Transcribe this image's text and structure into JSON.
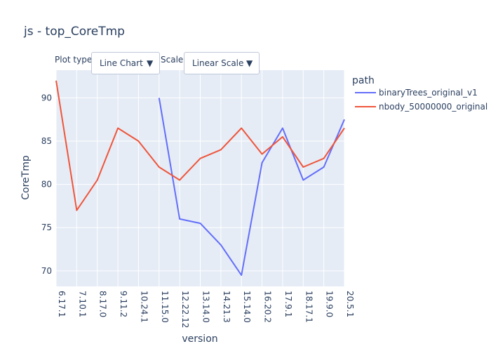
{
  "title": "js - top_CoreTmp",
  "controls": {
    "plot_type_label": "Plot type:",
    "plot_type_value": "Line Chart",
    "scale_label": "Scale:",
    "scale_value": "Linear Scale",
    "arrow_icon": "▼"
  },
  "legend": {
    "title": "path"
  },
  "colors": {
    "background": "#e5ecf6",
    "grid": "#ffffff",
    "series1": "#636efa",
    "series2": "#ef553b"
  },
  "chart_data": {
    "type": "line",
    "title": "js - top_CoreTmp",
    "xlabel": "version",
    "ylabel": "CoreTmp",
    "categories": [
      "6.17.1",
      "7.10.1",
      "8.17.0",
      "9.11.2",
      "10.24.1",
      "11.15.0",
      "12.22.12",
      "13.14.0",
      "14.21.3",
      "15.14.0",
      "16.20.2",
      "17.9.1",
      "18.17.1",
      "19.9.0",
      "20.5.1"
    ],
    "ylim": [
      68.2,
      93.2
    ],
    "yticks": [
      70,
      75,
      80,
      85,
      90
    ],
    "grid": true,
    "legend_position": "top-right",
    "series": [
      {
        "name": "binaryTrees_original_v1",
        "values": [
          null,
          null,
          null,
          null,
          null,
          90,
          76,
          75.5,
          73,
          69.5,
          82.5,
          86.5,
          80.5,
          82,
          87.5
        ]
      },
      {
        "name": "nbody_50000000_original",
        "values": [
          92,
          77,
          80.5,
          86.5,
          85,
          82,
          80.5,
          83,
          84,
          86.5,
          83.5,
          85.5,
          82,
          83,
          86.5
        ]
      }
    ]
  }
}
